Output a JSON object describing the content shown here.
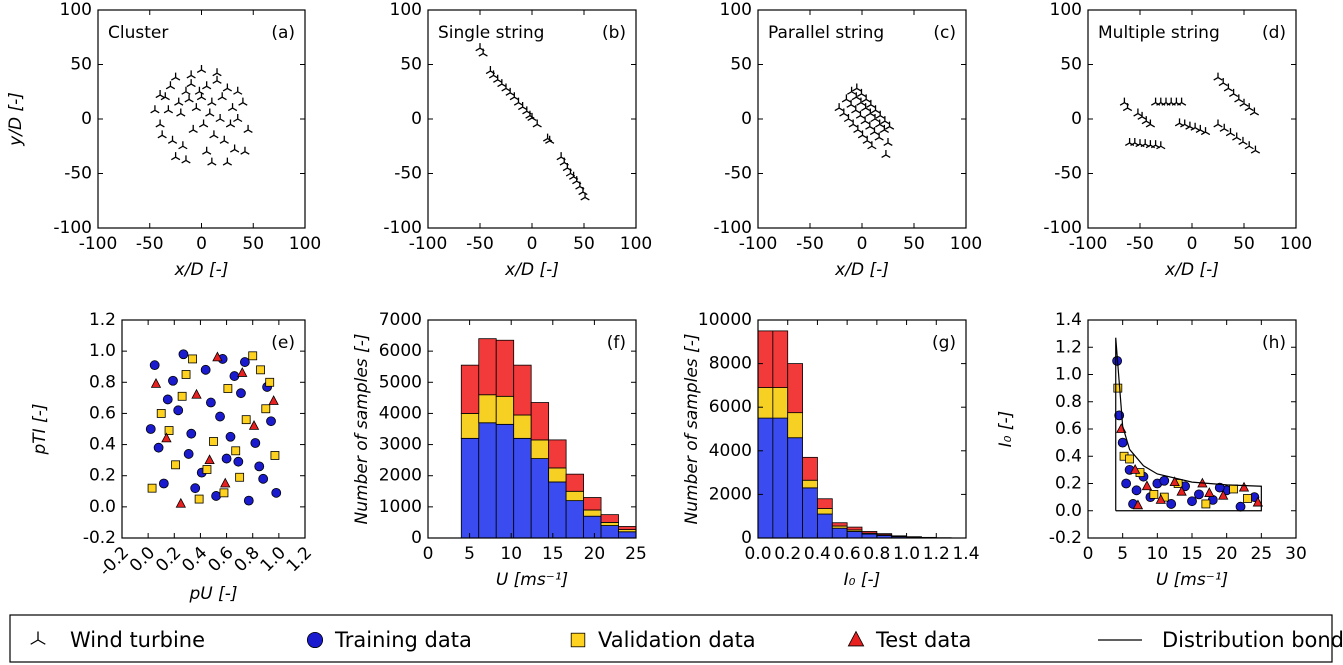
{
  "chart_data": [
    {
      "type": "scatter",
      "title": "Cluster",
      "label": "(a)",
      "xlabel": "x/D [-]",
      "ylabel": "y/D [-]",
      "xlim": [
        -100,
        100
      ],
      "ylim": [
        -100,
        100
      ],
      "xticks": [
        -100,
        -50,
        0,
        50,
        100
      ],
      "yticks": [
        -100,
        -50,
        0,
        50,
        100
      ],
      "series": [
        {
          "marker": "turbine",
          "color": "#000000",
          "x": [
            -45,
            -40,
            -35,
            -30,
            -25,
            -20,
            -15,
            -10,
            -5,
            0,
            5,
            10,
            15,
            20,
            25,
            30,
            35,
            40,
            45,
            -38,
            -28,
            -18,
            -8,
            2,
            12,
            22,
            32,
            42,
            -32,
            -22,
            -12,
            -2,
            8,
            18,
            28,
            -25,
            -15,
            5,
            15,
            25,
            -10,
            0,
            10,
            35,
            -40
          ],
          "y": [
            8,
            -5,
            20,
            30,
            38,
            5,
            25,
            40,
            10,
            45,
            30,
            15,
            35,
            20,
            28,
            10,
            0,
            15,
            -10,
            -15,
            -20,
            -25,
            -10,
            -5,
            -15,
            -20,
            -28,
            -30,
            8,
            15,
            18,
            25,
            5,
            0,
            -5,
            -35,
            -38,
            -30,
            42,
            -40,
            32,
            20,
            -40,
            25,
            22
          ]
        }
      ]
    },
    {
      "type": "scatter",
      "title": "Single string",
      "label": "(b)",
      "xlabel": "x/D [-]",
      "xlim": [
        -100,
        100
      ],
      "ylim": [
        -100,
        100
      ],
      "xticks": [
        -100,
        -50,
        0,
        50,
        100
      ],
      "yticks": [
        -100,
        -50,
        0,
        50,
        100
      ],
      "series": [
        {
          "marker": "turbine",
          "color": "#000000",
          "x": [
            -50,
            -47,
            -40,
            -37,
            -33,
            -29,
            -25,
            -21,
            -17,
            -13,
            -9,
            -5,
            -2,
            0,
            5,
            15,
            17,
            28,
            31,
            34,
            37,
            40,
            43,
            46,
            49,
            51
          ],
          "y": [
            65,
            60,
            44,
            40,
            36,
            32,
            28,
            24,
            20,
            15,
            11,
            7,
            3,
            1,
            -5,
            -18,
            -20,
            -35,
            -40,
            -45,
            -50,
            -53,
            -57,
            -62,
            -67,
            -72
          ]
        }
      ]
    },
    {
      "type": "scatter",
      "title": "Parallel string",
      "label": "(c)",
      "xlabel": "x/D [-]",
      "xlim": [
        -100,
        100
      ],
      "ylim": [
        -100,
        100
      ],
      "xticks": [
        -100,
        -50,
        0,
        50,
        100
      ],
      "yticks": [
        -100,
        -50,
        0,
        50,
        100
      ],
      "series": [
        {
          "marker": "turbine",
          "color": "#000000",
          "x": [
            -22,
            -17.5,
            -13,
            -8.5,
            -4,
            0.5,
            5,
            9.5,
            -15,
            -10.5,
            -6,
            -1.5,
            3,
            7.5,
            12,
            16.5,
            -10,
            -5.5,
            -1,
            3.5,
            8,
            12.5,
            17,
            21.5,
            -5,
            -0.5,
            4,
            8.5,
            13,
            17.5,
            22,
            26.5,
            25,
            23
          ],
          "y": [
            10,
            5,
            0,
            -5,
            -10,
            -15,
            -20,
            -25,
            18,
            13,
            8,
            3,
            -2,
            -7,
            -12,
            -17,
            25,
            20,
            15,
            10,
            5,
            0,
            -5,
            -10,
            28,
            23,
            18,
            13,
            8,
            3,
            -2,
            -7,
            -22,
            -33
          ]
        }
      ]
    },
    {
      "type": "scatter",
      "title": "Multiple string",
      "label": "(d)",
      "xlabel": "x/D [-]",
      "xlim": [
        -100,
        100
      ],
      "ylim": [
        -100,
        100
      ],
      "xticks": [
        -100,
        -50,
        0,
        50,
        100
      ],
      "yticks": [
        -100,
        -50,
        0,
        50,
        100
      ],
      "series": [
        {
          "marker": "turbine",
          "color": "#000000",
          "x": [
            -65,
            -62,
            -52,
            -48,
            -44,
            -40,
            -35,
            -30,
            -25,
            -20,
            -15,
            -10,
            -60,
            -55,
            -50,
            -45,
            -40,
            -35,
            -30,
            -12,
            -7,
            -2,
            3,
            8,
            13,
            25,
            30,
            35,
            40,
            45,
            50,
            55,
            60,
            25,
            31,
            37,
            43,
            49,
            55,
            61
          ],
          "y": [
            15,
            10,
            5,
            2,
            -2,
            -5,
            15,
            15,
            15,
            15,
            15,
            15,
            -22,
            -22,
            -23,
            -23,
            -24,
            -24,
            -25,
            -4,
            -5,
            -7,
            -8,
            -10,
            -12,
            38,
            33,
            28,
            23,
            18,
            14,
            10,
            6,
            -5,
            -9,
            -13,
            -17,
            -21,
            -25,
            -29
          ]
        }
      ]
    },
    {
      "type": "scatter",
      "label": "(e)",
      "xlabel": "pU [-]",
      "ylabel": "pTI [-]",
      "xtick_rotation": 45,
      "xlim": [
        -0.2,
        1.2
      ],
      "ylim": [
        -0.2,
        1.2
      ],
      "xticks": [
        -0.2,
        {
          "value": 0,
          "label": "0.0"
        },
        0.2,
        0.4,
        0.6,
        0.8,
        {
          "value": 1,
          "label": "1.0"
        },
        1.2
      ],
      "yticks": [
        -0.2,
        {
          "value": 0,
          "label": "0.0"
        },
        0.2,
        0.4,
        0.6,
        0.8,
        {
          "value": 1,
          "label": "1.0"
        },
        1.2
      ],
      "series": [
        {
          "marker": "circle",
          "color": "#1a1acf",
          "x": [
            0.05,
            0.12,
            0.23,
            0.31,
            0.44,
            0.52,
            0.63,
            0.71,
            0.85,
            0.94,
            0.08,
            0.19,
            0.36,
            0.48,
            0.57,
            0.69,
            0.77,
            0.91,
            0.02,
            0.27,
            0.41,
            0.55,
            0.66,
            0.82,
            0.98,
            0.15,
            0.33,
            0.6,
            0.74,
            0.88
          ],
          "y": [
            0.91,
            0.15,
            0.62,
            0.34,
            0.88,
            0.07,
            0.45,
            0.73,
            0.26,
            0.55,
            0.38,
            0.81,
            0.12,
            0.67,
            0.95,
            0.29,
            0.04,
            0.77,
            0.5,
            0.98,
            0.22,
            0.58,
            0.84,
            0.41,
            0.09,
            0.69,
            0.47,
            0.31,
            0.93,
            0.18
          ]
        },
        {
          "marker": "square",
          "color": "#ffd21f",
          "x": [
            0.1,
            0.21,
            0.29,
            0.39,
            0.5,
            0.61,
            0.7,
            0.8,
            0.9,
            0.97,
            0.03,
            0.16,
            0.26,
            0.45,
            0.58,
            0.75,
            0.86,
            0.34,
            0.67,
            0.93
          ],
          "y": [
            0.6,
            0.27,
            0.85,
            0.05,
            0.42,
            0.76,
            0.19,
            0.97,
            0.63,
            0.33,
            0.12,
            0.49,
            0.71,
            0.24,
            0.09,
            0.56,
            0.88,
            0.95,
            0.36,
            0.8
          ]
        },
        {
          "marker": "triangle",
          "color": "#e82020",
          "x": [
            0.14,
            0.37,
            0.59,
            0.81,
            0.25,
            0.47,
            0.72,
            0.96,
            0.06,
            0.53
          ],
          "y": [
            0.44,
            0.72,
            0.15,
            0.52,
            0.02,
            0.3,
            0.86,
            0.68,
            0.79,
            0.96
          ]
        }
      ]
    },
    {
      "type": "histogram",
      "label": "(f)",
      "xlabel": "U [ms⁻¹]",
      "ylabel": "Number of samples [-]",
      "xlim": [
        0,
        25
      ],
      "ylim": [
        0,
        7000
      ],
      "xticks": [
        0,
        5,
        10,
        15,
        20,
        25
      ],
      "yticks": [
        0,
        1000,
        2000,
        3000,
        4000,
        5000,
        6000,
        7000
      ],
      "bins": [
        4,
        6.1,
        8.2,
        10.3,
        12.4,
        14.5,
        16.6,
        18.7,
        20.8,
        22.9,
        25
      ],
      "series": [
        {
          "color": "#3a4cf0",
          "values": [
            3200,
            3700,
            3650,
            3200,
            2550,
            1800,
            1200,
            700,
            400,
            200
          ]
        },
        {
          "color": "#f7d024",
          "values": [
            800,
            900,
            900,
            750,
            600,
            450,
            300,
            200,
            100,
            70
          ]
        },
        {
          "color": "#f23a3a",
          "values": [
            1550,
            1800,
            1800,
            1600,
            1200,
            900,
            550,
            400,
            250,
            100
          ]
        }
      ]
    },
    {
      "type": "histogram",
      "label": "(g)",
      "xlabel": "I₀ [-]",
      "ylabel": "Number of samples [-]",
      "xlim": [
        0,
        1.4
      ],
      "ylim": [
        0,
        10000
      ],
      "xticks": [
        {
          "value": 0,
          "label": "0.0"
        },
        0.2,
        0.4,
        0.6,
        0.8,
        {
          "value": 1,
          "label": "1.0"
        },
        1.2,
        1.4
      ],
      "yticks": [
        0,
        2000,
        4000,
        6000,
        8000,
        10000
      ],
      "bins": [
        0,
        0.1,
        0.2,
        0.3,
        0.4,
        0.5,
        0.6,
        0.7,
        0.8,
        0.9,
        1,
        1.1,
        1.2,
        1.3
      ],
      "series": [
        {
          "color": "#3a4cf0",
          "values": [
            5500,
            5500,
            4600,
            2300,
            1100,
            450,
            300,
            180,
            120,
            60,
            35,
            18,
            6
          ]
        },
        {
          "color": "#f7d024",
          "values": [
            1400,
            1400,
            1150,
            350,
            250,
            100,
            70,
            40,
            30,
            15,
            10,
            5,
            2
          ]
        },
        {
          "color": "#f23a3a",
          "values": [
            2600,
            2600,
            2250,
            1050,
            450,
            150,
            130,
            80,
            50,
            25,
            15,
            7,
            2
          ]
        }
      ]
    },
    {
      "type": "scatter",
      "label": "(h)",
      "xlabel": "U [ms⁻¹]",
      "ylabel": "I₀ [-]",
      "xlim": [
        0,
        30
      ],
      "ylim": [
        -0.2,
        1.4
      ],
      "xticks": [
        0,
        5,
        10,
        15,
        20,
        25,
        30
      ],
      "yticks": [
        -0.2,
        {
          "value": 0,
          "label": "0.0"
        },
        0.2,
        0.4,
        0.6,
        0.8,
        {
          "value": 1,
          "label": "1.0"
        },
        1.2,
        1.4
      ],
      "series": [
        {
          "marker": "circle",
          "color": "#1a1acf",
          "x": [
            4.2,
            5,
            6,
            7,
            8,
            9,
            10,
            12,
            14,
            16,
            18,
            20,
            22,
            24,
            4.5,
            5.5,
            6.5,
            11,
            15,
            19
          ],
          "y": [
            1.1,
            0.5,
            0.3,
            0.15,
            0.25,
            0.1,
            0.2,
            0.05,
            0.18,
            0.12,
            0.08,
            0.15,
            0.03,
            0.1,
            0.7,
            0.2,
            0.05,
            0.22,
            0.07,
            0.17
          ]
        },
        {
          "marker": "square",
          "color": "#ffd21f",
          "x": [
            4.3,
            5.2,
            7.5,
            9.5,
            13,
            17,
            21,
            23,
            6,
            11
          ],
          "y": [
            0.9,
            0.4,
            0.28,
            0.12,
            0.2,
            0.05,
            0.16,
            0.09,
            0.38,
            0.1
          ]
        },
        {
          "marker": "triangle",
          "color": "#e82020",
          "x": [
            4.8,
            6.8,
            8.5,
            10.5,
            13.5,
            16.5,
            19.5,
            22.5,
            24.5,
            12.5,
            17.5,
            7.2
          ],
          "y": [
            0.6,
            0.3,
            0.18,
            0.08,
            0.14,
            0.2,
            0.11,
            0.17,
            0.06,
            0.21,
            0.13,
            0.04
          ]
        },
        {
          "marker": "line",
          "color": "#000000",
          "x": [
            4,
            4,
            5,
            6,
            8,
            10,
            15,
            20,
            25,
            25,
            4
          ],
          "y": [
            0,
            1.27,
            0.62,
            0.45,
            0.33,
            0.27,
            0.21,
            0.19,
            0.18,
            0,
            0
          ]
        }
      ]
    }
  ],
  "legend": {
    "items": [
      {
        "name": "Wind turbine",
        "marker": "turbine",
        "color": "#000000"
      },
      {
        "name": "Training data",
        "marker": "circle",
        "color": "#1a1acf"
      },
      {
        "name": "Validation data",
        "marker": "square",
        "color": "#ffd21f"
      },
      {
        "name": "Test data",
        "marker": "triangle",
        "color": "#e82020"
      },
      {
        "name": "Distribution bondary",
        "marker": "line",
        "color": "#000000"
      }
    ]
  }
}
